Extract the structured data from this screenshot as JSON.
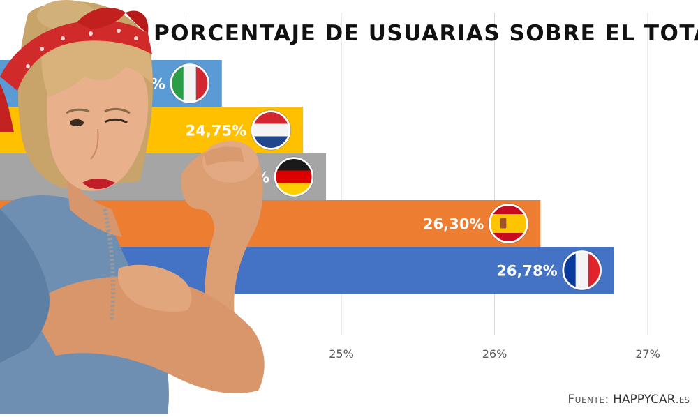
{
  "title": "PORCENTAJE DE USUARIAS SOBRE EL TOTAL",
  "source": {
    "prefix": "Fuente:",
    "brand": "HAPPYCAR",
    "tld": ".es"
  },
  "colors": {
    "Italia": "#5b9bd5",
    "Países Bajos": "#ffc000",
    "Alemania": "#a5a5a5",
    "España": "#ed7d31",
    "Francia": "#4472c4",
    "gridline": "#d9d9d9",
    "label": "#ffffff",
    "tick": "#595959"
  },
  "chart_data": {
    "type": "bar",
    "orientation": "horizontal",
    "title": "PORCENTAJE DE USUARIAS SOBRE EL TOTAL",
    "categories": [
      "Italia",
      "Países Bajos",
      "Alemania",
      "España",
      "Francia"
    ],
    "values": [
      24.22,
      24.75,
      24.9,
      26.3,
      26.78
    ],
    "value_labels": [
      "24,22%",
      "24,75%",
      "24,90%",
      "26,30%",
      "26,78%"
    ],
    "flags": [
      "italy-flag-icon",
      "netherlands-flag-icon",
      "germany-flag-icon",
      "spain-flag-icon",
      "france-flag-icon"
    ],
    "xticks": [
      25,
      26,
      27
    ],
    "xtick_labels": [
      "25%",
      "26%",
      "27%"
    ],
    "xlim": [
      23,
      27
    ],
    "grid": true,
    "legend": "none"
  }
}
